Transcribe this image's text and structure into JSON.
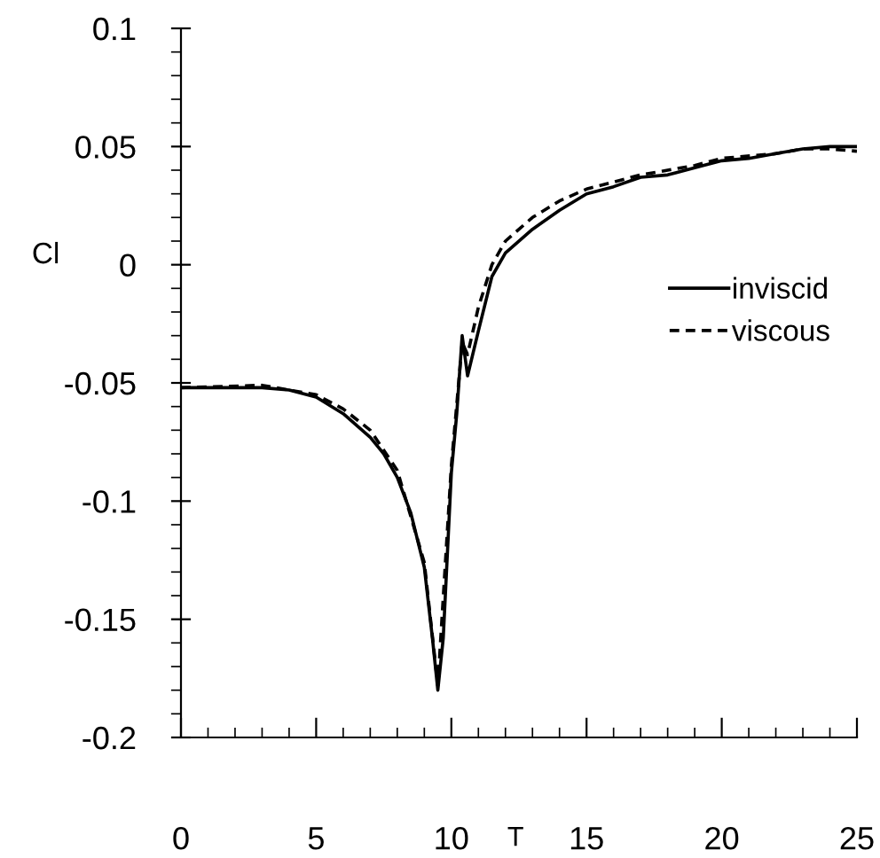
{
  "chart_data": {
    "type": "line",
    "xlabel": "T",
    "ylabel": "Cl",
    "xlim": [
      0,
      25
    ],
    "ylim": [
      -0.2,
      0.1
    ],
    "xticks": [
      0,
      5,
      10,
      15,
      20,
      25
    ],
    "yticks": [
      -0.2,
      -0.15,
      -0.1,
      -0.05,
      0,
      0.05,
      0.1
    ],
    "grid": false,
    "legend": "right",
    "marker": "none",
    "series": [
      {
        "name": "inviscid",
        "color": "#000000",
        "line_style": "solid",
        "x": [
          0,
          3,
          4,
          5,
          6,
          7,
          7.5,
          8,
          8.5,
          9,
          9.3,
          9.5,
          9.7,
          10,
          10.2,
          10.4,
          10.6,
          11,
          11.5,
          12,
          13,
          14,
          15,
          16,
          17,
          18,
          19,
          20,
          21,
          22,
          23,
          24,
          25
        ],
        "values": [
          -0.052,
          -0.052,
          -0.053,
          -0.056,
          -0.063,
          -0.073,
          -0.08,
          -0.09,
          -0.105,
          -0.128,
          -0.158,
          -0.18,
          -0.158,
          -0.088,
          -0.063,
          -0.03,
          -0.047,
          -0.028,
          -0.005,
          0.005,
          0.015,
          0.023,
          0.03,
          0.033,
          0.037,
          0.038,
          0.041,
          0.044,
          0.045,
          0.047,
          0.049,
          0.05,
          0.05
        ]
      },
      {
        "name": "viscous",
        "color": "#000000",
        "line_style": "dashed",
        "x": [
          0,
          3,
          5,
          6,
          7,
          8,
          9,
          9.5,
          10,
          10.4,
          10.6,
          11,
          11.5,
          12,
          13,
          14,
          15,
          16,
          17,
          18,
          19,
          20,
          22,
          23,
          24,
          25
        ],
        "values": [
          -0.052,
          -0.051,
          -0.055,
          -0.061,
          -0.07,
          -0.087,
          -0.126,
          -0.178,
          -0.085,
          -0.033,
          -0.038,
          -0.018,
          0.0,
          0.01,
          0.02,
          0.027,
          0.032,
          0.035,
          0.038,
          0.04,
          0.042,
          0.045,
          0.047,
          0.049,
          0.049,
          0.048
        ]
      }
    ]
  }
}
